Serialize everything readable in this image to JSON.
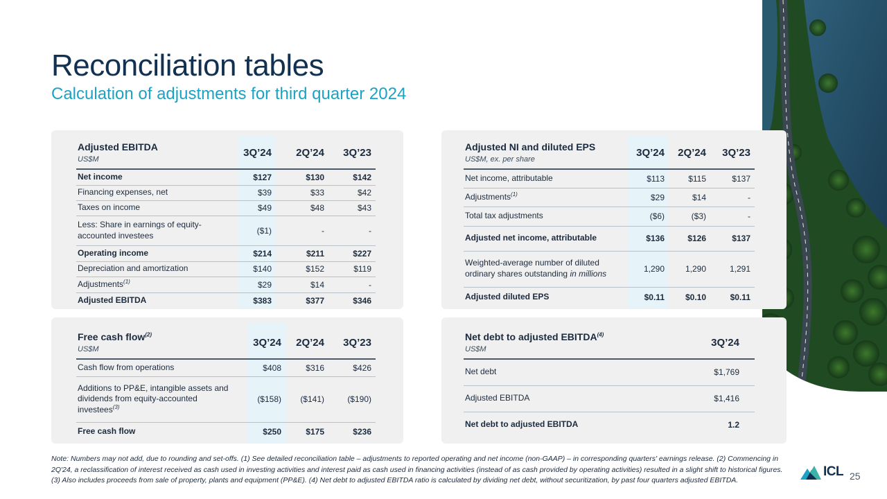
{
  "title": "Reconciliation tables",
  "subtitle": "Calculation of adjustments for third quarter 2024",
  "ebitda": {
    "title": "Adjusted EBITDA",
    "unit": "US$M",
    "cols": [
      "3Q’24",
      "2Q’24",
      "3Q’23"
    ],
    "rows": [
      {
        "label": "Net income",
        "v": [
          "$127",
          "$130",
          "$142"
        ]
      },
      {
        "label": "Financing expenses, net",
        "v": [
          "$39",
          "$33",
          "$42"
        ]
      },
      {
        "label": "Taxes on income",
        "v": [
          "$49",
          "$48",
          "$43"
        ]
      },
      {
        "label": "Less: Share in earnings of equity-accounted investees",
        "v": [
          "($1)",
          "-",
          "-"
        ]
      },
      {
        "label": "Operating income",
        "v": [
          "$214",
          "$211",
          "$227"
        ]
      },
      {
        "label": "Depreciation and amortization",
        "v": [
          "$140",
          "$152",
          "$119"
        ]
      },
      {
        "label": "Adjustments",
        "note": "(1)",
        "v": [
          "$29",
          "$14",
          "-"
        ]
      },
      {
        "label": "Adjusted EBITDA",
        "v": [
          "$383",
          "$377",
          "$346"
        ]
      }
    ]
  },
  "eps": {
    "title": "Adjusted NI and diluted EPS",
    "unit": "US$M, ex. per share",
    "cols": [
      "3Q’24",
      "2Q’24",
      "3Q’23"
    ],
    "rows": [
      {
        "label": "Net income, attributable",
        "v": [
          "$113",
          "$115",
          "$137"
        ]
      },
      {
        "label": "Adjustments",
        "note": "(1)",
        "v": [
          "$29",
          "$14",
          "-"
        ]
      },
      {
        "label": "Total tax adjustments",
        "v": [
          "($6)",
          "($3)",
          "-"
        ]
      },
      {
        "label": "Adjusted net income, attributable",
        "v": [
          "$136",
          "$126",
          "$137"
        ]
      },
      {
        "label": "Weighted-average number of diluted ordinary shares outstanding",
        "label_ital": "in millions",
        "v": [
          "1,290",
          "1,290",
          "1,291"
        ]
      },
      {
        "label": "Adjusted diluted EPS",
        "v": [
          "$0.11",
          "$0.10",
          "$0.11"
        ]
      }
    ]
  },
  "fcf": {
    "title": "Free cash flow",
    "title_note": "(2)",
    "unit": "US$M",
    "cols": [
      "3Q’24",
      "2Q’24",
      "3Q’23"
    ],
    "rows": [
      {
        "label": "Cash flow from operations",
        "v": [
          "$408",
          "$316",
          "$426"
        ]
      },
      {
        "label": "Additions to PP&E, intangible assets and dividends from equity-accounted investees",
        "note": "(3)",
        "v": [
          "($158)",
          "($141)",
          "($190)"
        ]
      },
      {
        "label": "Free cash flow",
        "v": [
          "$250",
          "$175",
          "$236"
        ]
      }
    ]
  },
  "netdebt": {
    "title": "Net debt to adjusted EBITDA",
    "title_note": "(4)",
    "unit": "US$M",
    "cols": [
      "3Q’24"
    ],
    "rows": [
      {
        "label": "Net debt",
        "v": [
          "$1,769"
        ]
      },
      {
        "label": "Adjusted EBITDA",
        "v": [
          "$1,416"
        ]
      },
      {
        "label": "Net debt to adjusted EBITDA",
        "v": [
          "1.2"
        ]
      }
    ]
  },
  "notes": "Note: Numbers may not add, due to rounding and set-offs. (1) See detailed reconciliation table – adjustments to reported operating and net income (non-GAAP) – in corresponding quarters' earnings release. (2) Commencing in 2Q'24, a reclassification of interest received as cash used in investing activities and interest paid as cash used in financing activities (instead of as cash provided by operating activities) resulted in a slight shift to historical figures. (3) Also includes proceeds from sale of property, plants and equipment (PP&E). (4) Net debt to adjusted EBITDA ratio is calculated by dividing net debt, without securitization, by past four quarters adjusted EBITDA.",
  "page_number": "25",
  "logo_text": "ICL",
  "colors": {
    "navy": "#12304f",
    "accent": "#1ba2c4",
    "panel": "#f0f0f0",
    "highlight": "#e6f3f8"
  }
}
